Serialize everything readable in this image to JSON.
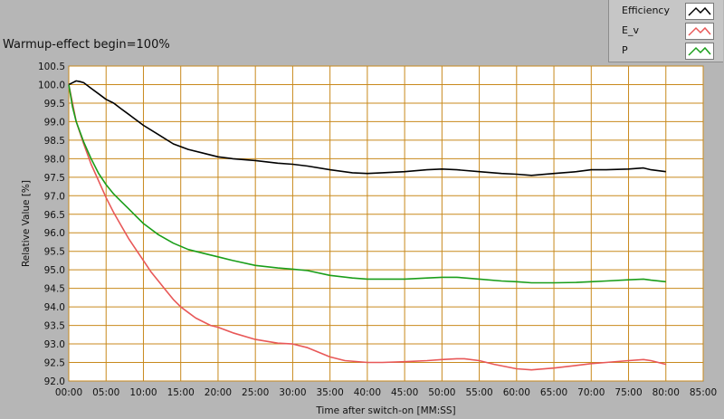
{
  "title": "Warmup-effect begin=100%",
  "legend": [
    {
      "label": "Efficiency",
      "color": "#000000"
    },
    {
      "label": "E_v",
      "color": "#e85858"
    },
    {
      "label": "P",
      "color": "#1a9e1a"
    }
  ],
  "chart_data": {
    "type": "line",
    "xlabel": "Time after switch-on [MM:SS]",
    "ylabel": "Relative Value [%]",
    "xlim": [
      0,
      85
    ],
    "ylim": [
      92.0,
      100.5
    ],
    "x_ticks": [
      "00:00",
      "05:00",
      "10:00",
      "15:00",
      "20:00",
      "25:00",
      "30:00",
      "35:00",
      "40:00",
      "45:00",
      "50:00",
      "55:00",
      "60:00",
      "65:00",
      "70:00",
      "75:00",
      "80:00",
      "85:00"
    ],
    "y_ticks": [
      "100.5",
      "100.0",
      "99.5",
      "99.0",
      "98.5",
      "98.0",
      "97.5",
      "97.0",
      "96.5",
      "96.0",
      "95.5",
      "95.0",
      "94.5",
      "94.0",
      "93.5",
      "93.0",
      "92.5",
      "92.0"
    ],
    "grid": true,
    "plot_background": "#ffffff",
    "grid_color": "#c8891c",
    "series": [
      {
        "name": "Efficiency",
        "color": "#000000",
        "x": [
          0,
          0.5,
          1,
          1.5,
          2,
          3,
          4,
          5,
          6,
          7,
          8,
          10,
          12,
          14,
          16,
          18,
          20,
          22,
          25,
          28,
          30,
          32,
          35,
          38,
          40,
          42,
          45,
          48,
          50,
          52,
          55,
          58,
          60,
          62,
          65,
          68,
          70,
          72,
          75,
          77,
          78,
          80
        ],
        "y": [
          100.0,
          100.05,
          100.1,
          100.08,
          100.05,
          99.9,
          99.75,
          99.6,
          99.5,
          99.35,
          99.2,
          98.9,
          98.65,
          98.4,
          98.25,
          98.15,
          98.05,
          98.0,
          97.95,
          97.88,
          97.85,
          97.8,
          97.7,
          97.62,
          97.6,
          97.62,
          97.65,
          97.7,
          97.72,
          97.7,
          97.65,
          97.6,
          97.58,
          97.55,
          97.6,
          97.65,
          97.7,
          97.7,
          97.72,
          97.75,
          97.7,
          97.65
        ]
      },
      {
        "name": "E_v",
        "color": "#e85858",
        "x": [
          0,
          0.5,
          1,
          2,
          3,
          4,
          5,
          6,
          7,
          8,
          9,
          10,
          11,
          12,
          13,
          14,
          15,
          16,
          17,
          18,
          19,
          20,
          22,
          25,
          28,
          30,
          32,
          35,
          37,
          40,
          42,
          45,
          48,
          50,
          52,
          53,
          55,
          57,
          60,
          62,
          65,
          68,
          70,
          72,
          75,
          77,
          78,
          80
        ],
        "y": [
          100.0,
          99.5,
          99.0,
          98.4,
          97.85,
          97.4,
          96.95,
          96.55,
          96.2,
          95.85,
          95.55,
          95.25,
          94.95,
          94.7,
          94.45,
          94.2,
          94.0,
          93.85,
          93.7,
          93.6,
          93.5,
          93.45,
          93.3,
          93.12,
          93.02,
          93.0,
          92.9,
          92.65,
          92.55,
          92.5,
          92.5,
          92.52,
          92.55,
          92.58,
          92.6,
          92.6,
          92.55,
          92.45,
          92.33,
          92.3,
          92.35,
          92.42,
          92.47,
          92.5,
          92.55,
          92.58,
          92.55,
          92.45
        ]
      },
      {
        "name": "P",
        "color": "#1a9e1a",
        "x": [
          0,
          0.5,
          1,
          2,
          3,
          4,
          5,
          6,
          7,
          8,
          9,
          10,
          12,
          14,
          16,
          18,
          20,
          22,
          25,
          28,
          30,
          32,
          35,
          38,
          40,
          42,
          45,
          48,
          50,
          52,
          55,
          58,
          60,
          62,
          65,
          68,
          70,
          72,
          75,
          77,
          78,
          80
        ],
        "y": [
          100.0,
          99.4,
          99.0,
          98.45,
          98.0,
          97.6,
          97.3,
          97.05,
          96.85,
          96.65,
          96.45,
          96.25,
          95.95,
          95.72,
          95.55,
          95.45,
          95.35,
          95.25,
          95.12,
          95.05,
          95.02,
          94.98,
          94.85,
          94.78,
          94.75,
          94.75,
          94.75,
          94.78,
          94.8,
          94.8,
          94.75,
          94.7,
          94.68,
          94.65,
          94.65,
          94.66,
          94.68,
          94.7,
          94.73,
          94.75,
          94.72,
          94.68
        ]
      }
    ]
  }
}
